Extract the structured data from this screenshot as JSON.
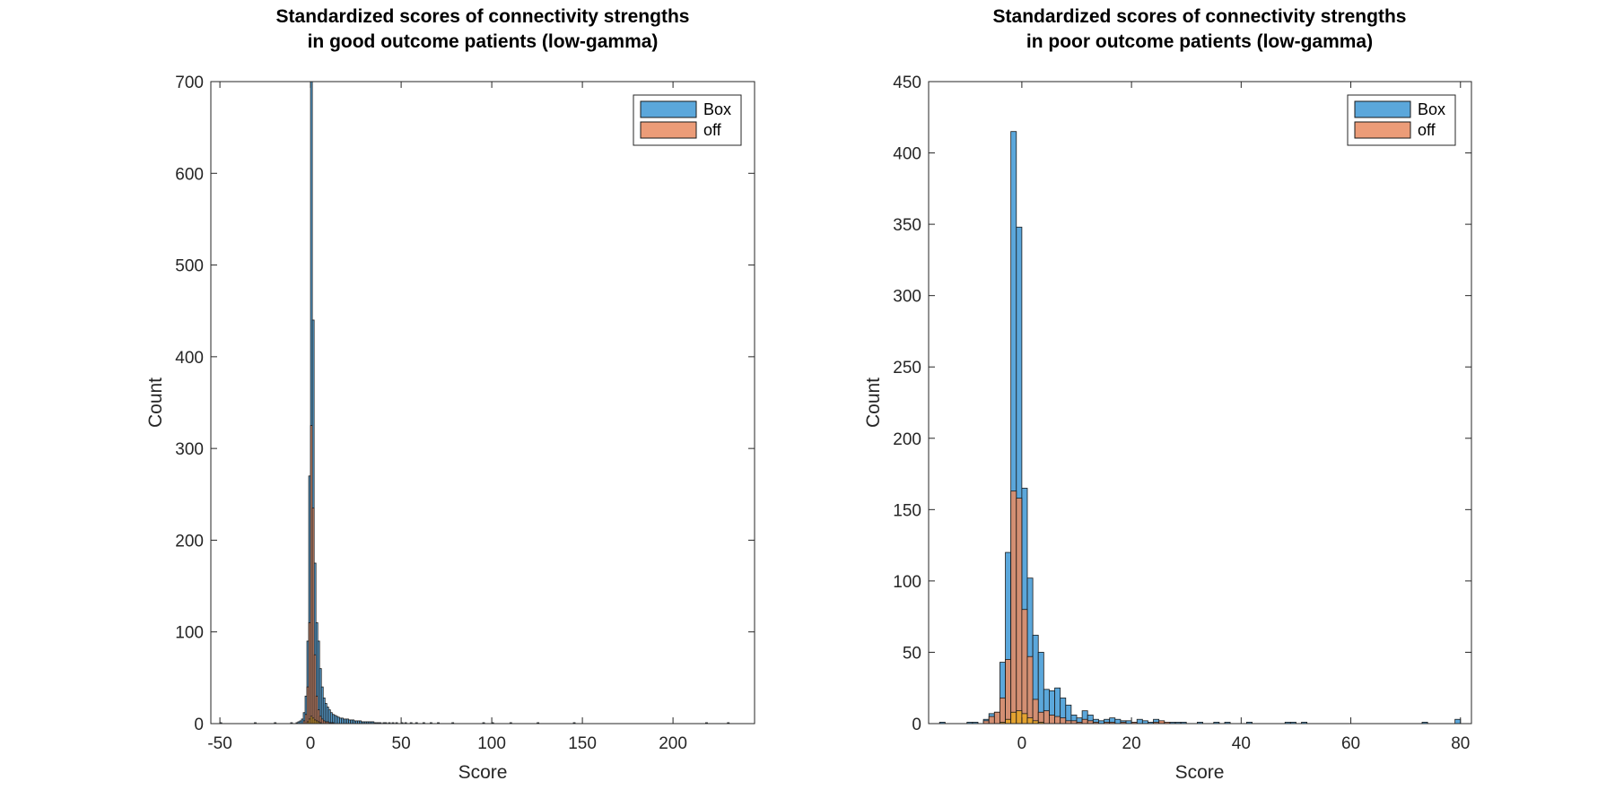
{
  "chart_data": [
    {
      "type": "bar",
      "subtype": "overlaid-histogram",
      "title": [
        "Standardized scores of connectivity strengths",
        "in good outcome patients (low-gamma)"
      ],
      "xlabel": "Score",
      "ylabel": "Count",
      "xlim": [
        -55,
        245
      ],
      "ylim": [
        0,
        700
      ],
      "xticks": [
        -50,
        0,
        50,
        100,
        150,
        200
      ],
      "xtick_labels": [
        "-50",
        "0",
        "50",
        "100",
        "150",
        "200"
      ],
      "yticks": [
        0,
        100,
        200,
        300,
        400,
        500,
        600,
        700
      ],
      "ytick_labels": [
        "0",
        "100",
        "200",
        "300",
        "400",
        "500",
        "600",
        "700"
      ],
      "grid": false,
      "legend": {
        "placement": "top-right",
        "entries": [
          "Box",
          "off"
        ]
      },
      "bin_edges_start": -50,
      "bin_width": 1,
      "series": [
        {
          "name": "Box",
          "color": "#4f9fd6",
          "bins": [
            [
              -50,
              1
            ],
            [
              -31,
              1
            ],
            [
              -20,
              1
            ],
            [
              -11,
              1
            ],
            [
              -8,
              1
            ],
            [
              -7,
              2
            ],
            [
              -6,
              3
            ],
            [
              -5,
              5
            ],
            [
              -4,
              12
            ],
            [
              -3,
              30
            ],
            [
              -2,
              90
            ],
            [
              -1,
              270
            ],
            [
              0,
              700
            ],
            [
              1,
              440
            ],
            [
              2,
              175
            ],
            [
              3,
              110
            ],
            [
              4,
              90
            ],
            [
              5,
              60
            ],
            [
              6,
              40
            ],
            [
              7,
              28
            ],
            [
              8,
              22
            ],
            [
              9,
              18
            ],
            [
              10,
              15
            ],
            [
              11,
              12
            ],
            [
              12,
              10
            ],
            [
              13,
              9
            ],
            [
              14,
              8
            ],
            [
              15,
              7
            ],
            [
              16,
              6
            ],
            [
              17,
              6
            ],
            [
              18,
              5
            ],
            [
              19,
              5
            ],
            [
              20,
              5
            ],
            [
              21,
              4
            ],
            [
              22,
              4
            ],
            [
              23,
              4
            ],
            [
              24,
              3
            ],
            [
              25,
              3
            ],
            [
              26,
              3
            ],
            [
              27,
              3
            ],
            [
              28,
              2
            ],
            [
              29,
              2
            ],
            [
              30,
              2
            ],
            [
              31,
              2
            ],
            [
              32,
              2
            ],
            [
              33,
              2
            ],
            [
              34,
              2
            ],
            [
              35,
              1
            ],
            [
              36,
              1
            ],
            [
              37,
              1
            ],
            [
              38,
              1
            ],
            [
              40,
              1
            ],
            [
              41,
              1
            ],
            [
              43,
              1
            ],
            [
              45,
              1
            ],
            [
              47,
              1
            ],
            [
              50,
              1
            ],
            [
              52,
              1
            ],
            [
              55,
              1
            ],
            [
              58,
              1
            ],
            [
              62,
              1
            ],
            [
              66,
              1
            ],
            [
              70,
              1
            ],
            [
              78,
              1
            ],
            [
              95,
              1
            ],
            [
              100,
              1
            ],
            [
              110,
              1
            ],
            [
              125,
              1
            ],
            [
              145,
              1
            ],
            [
              218,
              1
            ],
            [
              230,
              1
            ]
          ]
        },
        {
          "name": "off",
          "color": "#e8875c",
          "bins": [
            [
              -4,
              3
            ],
            [
              -3,
              10
            ],
            [
              -2,
              40
            ],
            [
              -1,
              110
            ],
            [
              0,
              325
            ],
            [
              1,
              235
            ],
            [
              2,
              75
            ],
            [
              3,
              30
            ],
            [
              4,
              15
            ],
            [
              5,
              8
            ],
            [
              6,
              5
            ],
            [
              7,
              3
            ],
            [
              8,
              2
            ],
            [
              9,
              2
            ],
            [
              10,
              1
            ],
            [
              11,
              1
            ],
            [
              12,
              1
            ]
          ]
        },
        {
          "name": "",
          "color": "#e3a11e",
          "bins": [
            [
              -2,
              2
            ],
            [
              -1,
              5
            ],
            [
              0,
              8
            ],
            [
              1,
              6
            ],
            [
              2,
              4
            ],
            [
              3,
              3
            ],
            [
              4,
              2
            ],
            [
              5,
              1
            ]
          ]
        }
      ]
    },
    {
      "type": "bar",
      "subtype": "overlaid-histogram",
      "title": [
        "Standardized scores of connectivity strengths",
        "in poor outcome patients (low-gamma)"
      ],
      "xlabel": "Score",
      "ylabel": "Count",
      "xlim": [
        -17,
        82
      ],
      "ylim": [
        0,
        450
      ],
      "xticks": [
        0,
        20,
        40,
        60,
        80
      ],
      "xtick_labels": [
        "0",
        "20",
        "40",
        "60",
        "80"
      ],
      "yticks": [
        0,
        50,
        100,
        150,
        200,
        250,
        300,
        350,
        400,
        450
      ],
      "ytick_labels": [
        "0",
        "50",
        "100",
        "150",
        "200",
        "250",
        "300",
        "350",
        "400",
        "450"
      ],
      "grid": false,
      "legend": {
        "placement": "top-right",
        "entries": [
          "Box",
          "off"
        ]
      },
      "bin_edges_start": -15,
      "bin_width": 1,
      "series": [
        {
          "name": "Box",
          "color": "#4f9fd6",
          "bins": [
            [
              -15,
              1
            ],
            [
              -10,
              1
            ],
            [
              -9,
              1
            ],
            [
              -7,
              3
            ],
            [
              -6,
              7
            ],
            [
              -5,
              8
            ],
            [
              -4,
              43
            ],
            [
              -3,
              120
            ],
            [
              -2,
              415
            ],
            [
              -1,
              348
            ],
            [
              0,
              165
            ],
            [
              1,
              102
            ],
            [
              2,
              62
            ],
            [
              3,
              50
            ],
            [
              4,
              24
            ],
            [
              5,
              23
            ],
            [
              6,
              25
            ],
            [
              7,
              18
            ],
            [
              8,
              13
            ],
            [
              9,
              6
            ],
            [
              10,
              4
            ],
            [
              11,
              9
            ],
            [
              12,
              6
            ],
            [
              13,
              3
            ],
            [
              14,
              2
            ],
            [
              15,
              3
            ],
            [
              16,
              4
            ],
            [
              17,
              3
            ],
            [
              18,
              2
            ],
            [
              19,
              2
            ],
            [
              20,
              1
            ],
            [
              21,
              3
            ],
            [
              22,
              2
            ],
            [
              23,
              1
            ],
            [
              24,
              3
            ],
            [
              25,
              1
            ],
            [
              27,
              1
            ],
            [
              28,
              1
            ],
            [
              29,
              1
            ],
            [
              32,
              1
            ],
            [
              35,
              1
            ],
            [
              37,
              1
            ],
            [
              41,
              1
            ],
            [
              48,
              1
            ],
            [
              49,
              1
            ],
            [
              51,
              1
            ],
            [
              73,
              1
            ],
            [
              79,
              3
            ]
          ]
        },
        {
          "name": "off",
          "color": "#e8875c",
          "bins": [
            [
              -7,
              2
            ],
            [
              -6,
              5
            ],
            [
              -5,
              8
            ],
            [
              -4,
              18
            ],
            [
              -3,
              45
            ],
            [
              -2,
              163
            ],
            [
              -1,
              158
            ],
            [
              0,
              80
            ],
            [
              1,
              47
            ],
            [
              2,
              17
            ],
            [
              3,
              8
            ],
            [
              4,
              9
            ],
            [
              5,
              6
            ],
            [
              6,
              5
            ],
            [
              7,
              4
            ],
            [
              8,
              2
            ],
            [
              9,
              2
            ],
            [
              10,
              1
            ],
            [
              11,
              3
            ],
            [
              12,
              2
            ],
            [
              13,
              1
            ],
            [
              15,
              1
            ],
            [
              16,
              1
            ],
            [
              18,
              1
            ],
            [
              20,
              1
            ],
            [
              24,
              1
            ],
            [
              25,
              2
            ],
            [
              26,
              1
            ]
          ]
        },
        {
          "name": "",
          "color": "#e3a11e",
          "bins": [
            [
              -4,
              1
            ],
            [
              -3,
              3
            ],
            [
              -2,
              8
            ],
            [
              -1,
              9
            ],
            [
              0,
              7
            ],
            [
              1,
              4
            ],
            [
              2,
              2
            ],
            [
              3,
              1
            ]
          ]
        }
      ]
    }
  ]
}
